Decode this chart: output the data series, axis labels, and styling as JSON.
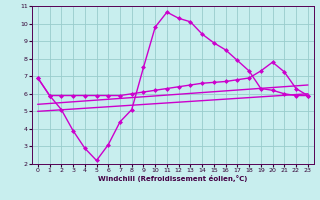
{
  "xlabel": "Windchill (Refroidissement éolien,°C)",
  "background_color": "#c8eeee",
  "grid_color": "#99cccc",
  "line_color": "#cc00cc",
  "xlim": [
    -0.5,
    23.5
  ],
  "ylim": [
    2,
    11
  ],
  "xticks": [
    0,
    1,
    2,
    3,
    4,
    5,
    6,
    7,
    8,
    9,
    10,
    11,
    12,
    13,
    14,
    15,
    16,
    17,
    18,
    19,
    20,
    21,
    22,
    23
  ],
  "yticks": [
    2,
    3,
    4,
    5,
    6,
    7,
    8,
    9,
    10,
    11
  ],
  "line1_x": [
    0,
    1,
    2,
    3,
    4,
    5,
    6,
    7,
    8,
    9,
    10,
    11,
    12,
    13,
    14,
    15,
    16,
    17,
    18,
    19,
    20,
    21,
    22,
    23
  ],
  "line1_y": [
    6.9,
    5.9,
    5.1,
    3.9,
    2.9,
    2.2,
    3.1,
    4.4,
    5.1,
    7.5,
    9.8,
    10.65,
    10.3,
    10.1,
    9.4,
    8.9,
    8.5,
    7.9,
    7.3,
    6.3,
    6.2,
    6.0,
    5.9,
    5.9
  ],
  "line2_x": [
    0,
    1,
    2,
    3,
    4,
    5,
    6,
    7,
    8,
    9,
    10,
    11,
    12,
    13,
    14,
    15,
    16,
    17,
    18,
    19,
    20,
    21,
    22,
    23
  ],
  "line2_y": [
    6.9,
    5.9,
    5.9,
    5.9,
    5.9,
    5.9,
    5.9,
    5.9,
    6.0,
    6.1,
    6.2,
    6.3,
    6.4,
    6.5,
    6.6,
    6.65,
    6.7,
    6.8,
    6.9,
    7.3,
    7.8,
    7.25,
    6.3,
    5.9
  ],
  "line3_x": [
    0,
    23
  ],
  "line3_y": [
    5.4,
    6.5
  ],
  "line4_x": [
    0,
    23
  ],
  "line4_y": [
    5.0,
    6.0
  ],
  "linewidth": 1.0,
  "markersize": 2.5
}
